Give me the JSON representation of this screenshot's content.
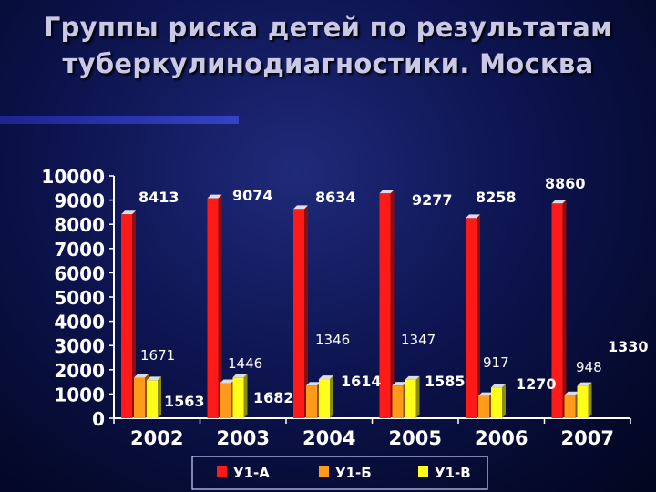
{
  "title": {
    "line1": "Группы риска детей по результатам",
    "line2": "туберкулинодиагностики. Москва"
  },
  "colors": {
    "background": "#0d1450",
    "axis": "#ffffff",
    "series": [
      "#ff1a1a",
      "#ff9a1a",
      "#ffff1a"
    ]
  },
  "chart_data": {
    "type": "bar",
    "title": "Группы риска детей по результатам туберкулинодиагностики. Москва",
    "categories": [
      "2002",
      "2003",
      "2004",
      "2005",
      "2006",
      "2007"
    ],
    "series": [
      {
        "name": "У1-А",
        "values": [
          8413,
          9074,
          8634,
          9277,
          8258,
          8860
        ],
        "labels": [
          "8413",
          "9074",
          "8634",
          "9277",
          "8258",
          "8860"
        ]
      },
      {
        "name": "У1-Б",
        "values": [
          1671,
          1446,
          1346,
          1347,
          917,
          948
        ],
        "labels": [
          "1671",
          "1446",
          "1346",
          "1347",
          "917",
          "948"
        ]
      },
      {
        "name": "У1-В",
        "values": [
          1563,
          1682,
          1614,
          1585,
          1270,
          1330
        ],
        "labels": [
          "1563",
          "1682",
          "1614",
          "1585",
          "1270",
          "1330"
        ]
      }
    ],
    "ylim": [
      0,
      10000
    ],
    "yticks": [
      "0",
      "1000",
      "2000",
      "3000",
      "4000",
      "5000",
      "6000",
      "7000",
      "8000",
      "9000",
      "10000"
    ],
    "grid": false,
    "legend_position": "bottom"
  }
}
